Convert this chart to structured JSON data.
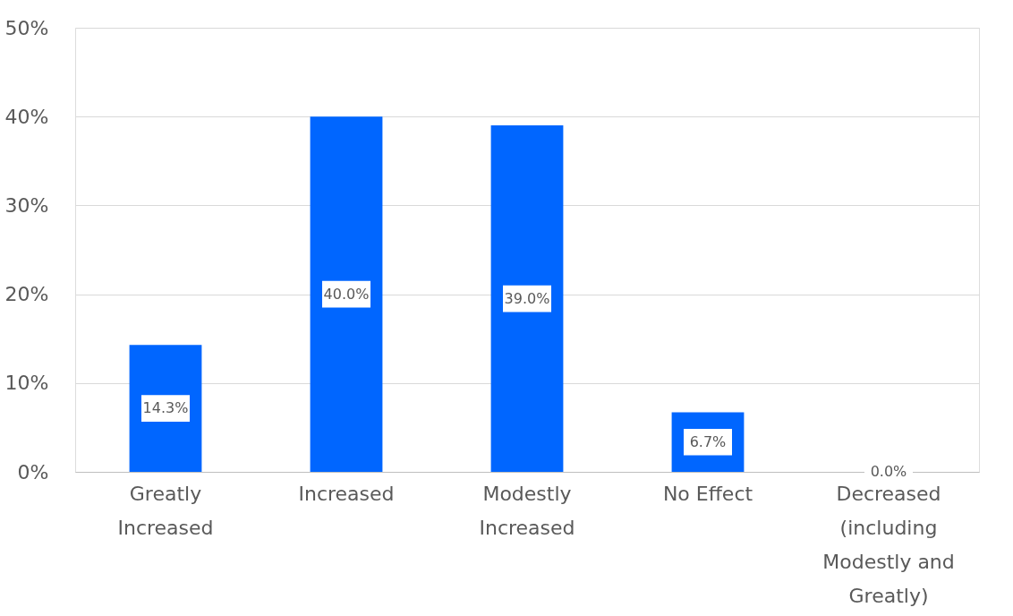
{
  "chart_data": {
    "type": "bar",
    "categories": [
      "Greatly Increased",
      "Increased",
      "Modestly Increased",
      "No Effect",
      "Decreased (including Modestly and Greatly)"
    ],
    "values": [
      14.3,
      40.0,
      39.0,
      6.7,
      0.0
    ],
    "value_labels": [
      "14.3%",
      "40.0%",
      "39.0%",
      "6.7%",
      "0.0%"
    ],
    "color": "#0066ff",
    "ylim": [
      0,
      50
    ],
    "yticks": [
      {
        "value": 0,
        "label": "0%"
      },
      {
        "value": 10,
        "label": "10%"
      },
      {
        "value": 20,
        "label": "20%"
      },
      {
        "value": 30,
        "label": "30%"
      },
      {
        "value": 40,
        "label": "40%"
      },
      {
        "value": 50,
        "label": "50%"
      }
    ],
    "grid": "y"
  }
}
